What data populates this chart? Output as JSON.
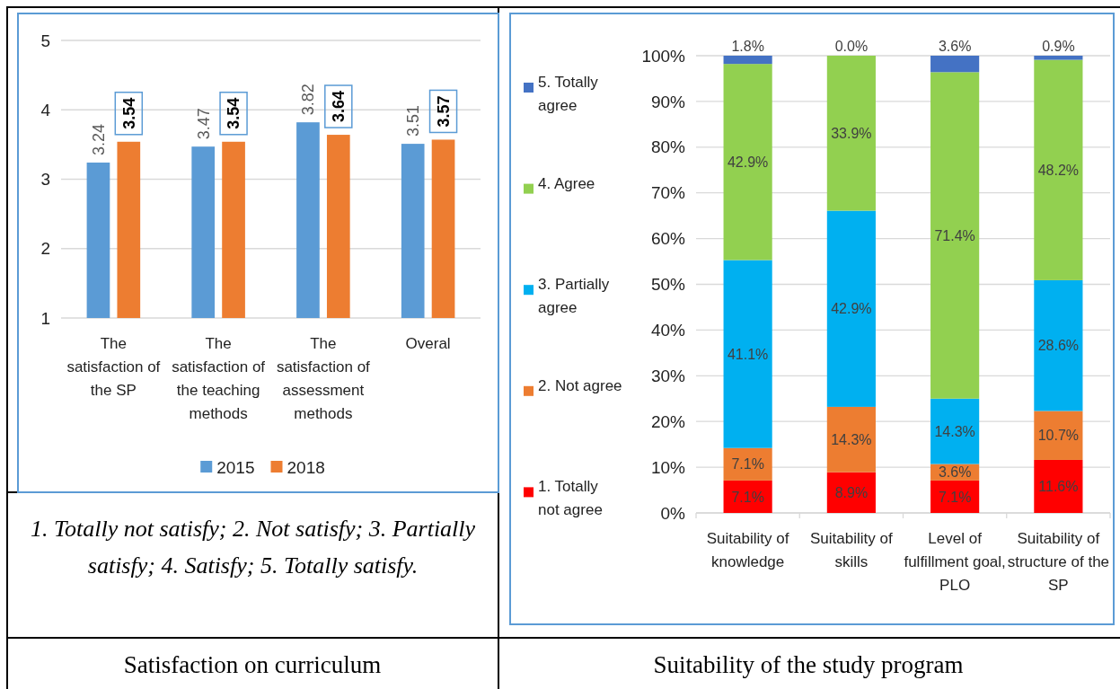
{
  "chart_data": [
    {
      "type": "bar",
      "title": "Satisfaction on curriculum",
      "annotations": [
        "1. Totally not satisfy; 2. Not satisfy; 3. Partially satisfy; 4. Satisfy; 5. Totally satisfy."
      ],
      "categories": [
        "The satisfaction of the SP",
        "The satisfaction of the teaching methods",
        "The satisfaction of assessment methods",
        "Overal"
      ],
      "series": [
        {
          "name": "2015",
          "color": "#5b9bd5",
          "values": [
            3.24,
            3.47,
            3.82,
            3.51
          ]
        },
        {
          "name": "2018",
          "color": "#ed7d31",
          "values": [
            3.54,
            3.54,
            3.64,
            3.57
          ]
        }
      ],
      "ylim": [
        1,
        5
      ],
      "yticks": [
        1,
        2,
        3,
        4,
        5
      ],
      "grid": "y",
      "legend": "bottom",
      "data_labels": true
    },
    {
      "type": "bar",
      "stacked": true,
      "title": "Suitability of the study program",
      "categories": [
        "Suitability of knowledge",
        "Suitability of skills",
        "Level of fulfillment goal, PLO",
        "Suitability of structure of the SP"
      ],
      "series": [
        {
          "name": "1. Totally not agree",
          "color": "#ff0000",
          "values": [
            7.1,
            8.9,
            7.1,
            11.6
          ],
          "value_labels": [
            "7.1%",
            "8.9%",
            "7.1%",
            "11.6%"
          ]
        },
        {
          "name": "2. Not agree",
          "color": "#ed7d31",
          "values": [
            7.1,
            14.3,
            3.6,
            10.7
          ],
          "value_labels": [
            "7.1%",
            "14.3%",
            "3.6%",
            "10.7%"
          ]
        },
        {
          "name": "3. Partially agree",
          "color": "#00b0f0",
          "values": [
            41.1,
            42.9,
            14.3,
            28.6
          ],
          "value_labels": [
            "41.1%",
            "42.9%",
            "14.3%",
            "28.6%"
          ]
        },
        {
          "name": "4. Agree",
          "color": "#92d050",
          "values": [
            42.9,
            33.9,
            71.4,
            48.2
          ],
          "value_labels": [
            "42.9%",
            "33.9%",
            "71.4%",
            "48.2%"
          ]
        },
        {
          "name": "5. Totally agree",
          "color": "#4472c4",
          "values": [
            1.8,
            0.0,
            3.6,
            0.9
          ],
          "value_labels": [
            "1.8%",
            "0.0%",
            "3.6%",
            "0.9%"
          ]
        }
      ],
      "ylim": [
        0,
        100
      ],
      "yticks": [
        {
          "value": 0,
          "label": "0%"
        },
        {
          "value": 10,
          "label": "10%"
        },
        {
          "value": 20,
          "label": "20%"
        },
        {
          "value": 30,
          "label": "30%"
        },
        {
          "value": 40,
          "label": "40%"
        },
        {
          "value": 50,
          "label": "50%"
        },
        {
          "value": 60,
          "label": "60%"
        },
        {
          "value": 70,
          "label": "70%"
        },
        {
          "value": 80,
          "label": "80%"
        },
        {
          "value": 90,
          "label": "90%"
        },
        {
          "value": 100,
          "label": "100%"
        }
      ],
      "grid": "y",
      "legend": "left"
    }
  ]
}
